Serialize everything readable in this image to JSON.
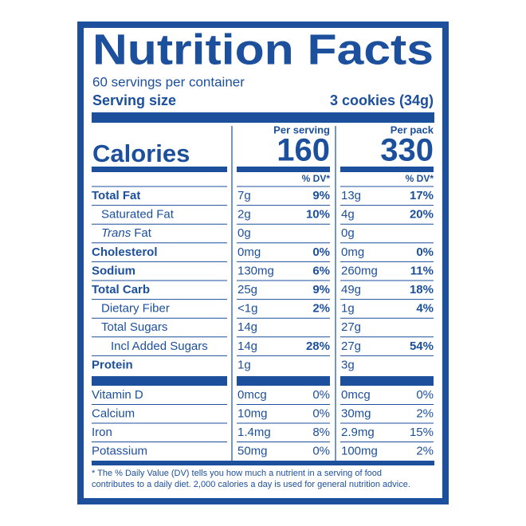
{
  "title": "Nutrition Facts",
  "servings": "60 servings per container",
  "serving_size": {
    "label": "Serving size",
    "value": "3 cookies (34g)"
  },
  "calories_label": "Calories",
  "columns": [
    {
      "header": "Per serving",
      "calories": "160",
      "dv_header": "% DV*"
    },
    {
      "header": "Per pack",
      "calories": "330",
      "dv_header": "% DV*"
    }
  ],
  "nutrients": [
    {
      "name": "Total Fat",
      "bold": true,
      "indent": 0,
      "values": [
        [
          "7g",
          "9%"
        ],
        [
          "13g",
          "17%"
        ]
      ]
    },
    {
      "name": "Saturated Fat",
      "bold": false,
      "indent": 1,
      "values": [
        [
          "2g",
          "10%"
        ],
        [
          "4g",
          "20%"
        ]
      ]
    },
    {
      "italic": "Trans",
      "name": "Fat",
      "bold": false,
      "indent": 1,
      "values": [
        [
          "0g"
        ],
        [
          "0g"
        ]
      ]
    },
    {
      "name": "Cholesterol",
      "bold": true,
      "indent": 0,
      "values": [
        [
          "0mg",
          "0%"
        ],
        [
          "0mg",
          "0%"
        ]
      ]
    },
    {
      "name": "Sodium",
      "bold": true,
      "indent": 0,
      "values": [
        [
          "130mg",
          "6%"
        ],
        [
          "260mg",
          "11%"
        ]
      ]
    },
    {
      "name": "Total Carb",
      "bold": true,
      "indent": 0,
      "values": [
        [
          "25g",
          "9%"
        ],
        [
          "49g",
          "18%"
        ]
      ]
    },
    {
      "name": "Dietary Fiber",
      "bold": false,
      "indent": 1,
      "values": [
        [
          "<1g",
          "2%"
        ],
        [
          "1g",
          "4%"
        ]
      ]
    },
    {
      "name": "Total Sugars",
      "bold": false,
      "indent": 1,
      "values": [
        [
          "14g"
        ],
        [
          "27g"
        ]
      ]
    },
    {
      "name": "Incl Added Sugars",
      "bold": false,
      "indent": 2,
      "values": [
        [
          "14g",
          "28%"
        ],
        [
          "27g",
          "54%"
        ]
      ]
    },
    {
      "name": "Protein",
      "bold": true,
      "indent": 0,
      "values": [
        [
          "1g"
        ],
        [
          "3g"
        ]
      ]
    }
  ],
  "vitamins": [
    {
      "name": "Vitamin D",
      "values": [
        [
          "0mcg",
          "0%"
        ],
        [
          "0mcg",
          "0%"
        ]
      ]
    },
    {
      "name": "Calcium",
      "values": [
        [
          "10mg",
          "0%"
        ],
        [
          "30mg",
          "2%"
        ]
      ]
    },
    {
      "name": "Iron",
      "values": [
        [
          "1.4mg",
          "8%"
        ],
        [
          "2.9mg",
          "15%"
        ]
      ]
    },
    {
      "name": "Potassium",
      "values": [
        [
          "50mg",
          "0%"
        ],
        [
          "100mg",
          "2%"
        ]
      ]
    }
  ],
  "footnote": [
    "* The % Daily Value (DV) tells you how much a nutrient in a serving of food",
    "contributes to a daily diet. 2,000 calories a day is used for general nutrition advice."
  ]
}
